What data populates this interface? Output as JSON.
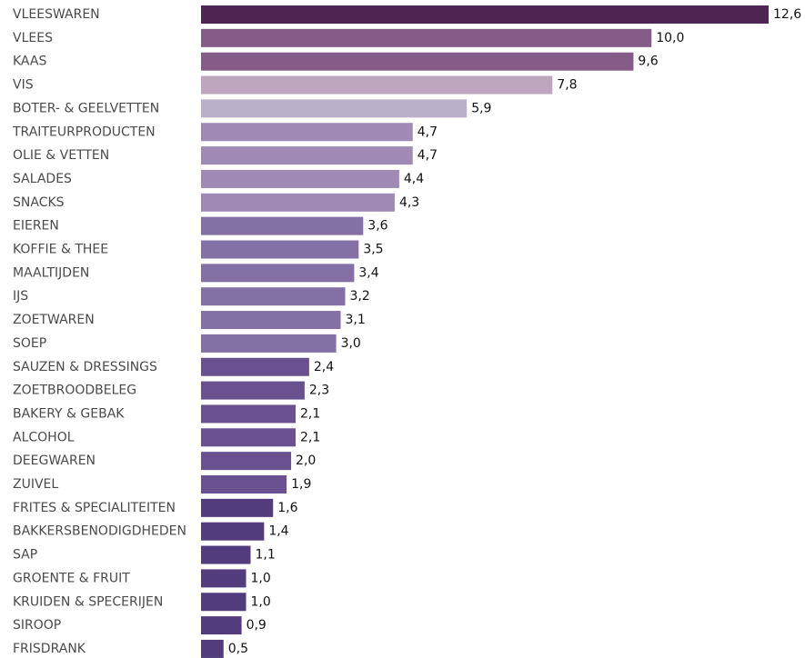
{
  "chart_data": {
    "type": "bar",
    "orientation": "horizontal",
    "categories": [
      "VLEESWAREN",
      "VLEES",
      "KAAS",
      "VIS",
      "BOTER- & GEELVETTEN",
      "TRAITEURPRODUCTEN",
      "OLIE & VETTEN",
      "SALADES",
      "SNACKS",
      "EIEREN",
      "KOFFIE & THEE",
      "MAALTIJDEN",
      "IJS",
      "ZOETWAREN",
      "SOEP",
      "SAUZEN & DRESSINGS",
      "ZOETBROODBELEG",
      "BAKERY & GEBAK",
      "ALCOHOL",
      "DEEGWAREN",
      "ZUIVEL",
      "FRITES & SPECIALITEITEN",
      "BAKKERSBENODIGDHEDEN",
      "SAP",
      "GROENTE & FRUIT",
      "KRUIDEN & SPECERIJEN",
      "SIROOP",
      "FRISDRANK"
    ],
    "values": [
      12.6,
      10.0,
      9.6,
      7.8,
      5.9,
      4.7,
      4.7,
      4.4,
      4.3,
      3.6,
      3.5,
      3.4,
      3.2,
      3.1,
      3.0,
      2.4,
      2.3,
      2.1,
      2.1,
      2.0,
      1.9,
      1.6,
      1.4,
      1.1,
      1.0,
      1.0,
      0.9,
      0.5
    ],
    "value_labels": [
      "12,6",
      "10,0",
      "9,6",
      "7,8",
      "5,9",
      "4,7",
      "4,7",
      "4,4",
      "4,3",
      "3,6",
      "3,5",
      "3,4",
      "3,2",
      "3,1",
      "3,0",
      "2,4",
      "2,3",
      "2,1",
      "2,1",
      "2,0",
      "1,9",
      "1,6",
      "1,4",
      "1,1",
      "1,0",
      "1,0",
      "0,9",
      "0,5"
    ],
    "colors": [
      "#4e2552",
      "#855b87",
      "#855b87",
      "#bda5bd",
      "#bbb0c9",
      "#9f8ab6",
      "#9f8ab6",
      "#9f8ab6",
      "#9f8ab6",
      "#8371a5",
      "#8371a5",
      "#8371a5",
      "#8371a5",
      "#8371a5",
      "#8371a5",
      "#69518f",
      "#69518f",
      "#69518f",
      "#69518f",
      "#69518f",
      "#69518f",
      "#533c7e",
      "#533c7e",
      "#533c7e",
      "#533c7e",
      "#533c7e",
      "#533c7e",
      "#533c7e"
    ],
    "xlim": [
      0,
      12.6
    ],
    "grid": false,
    "legend": "none"
  }
}
